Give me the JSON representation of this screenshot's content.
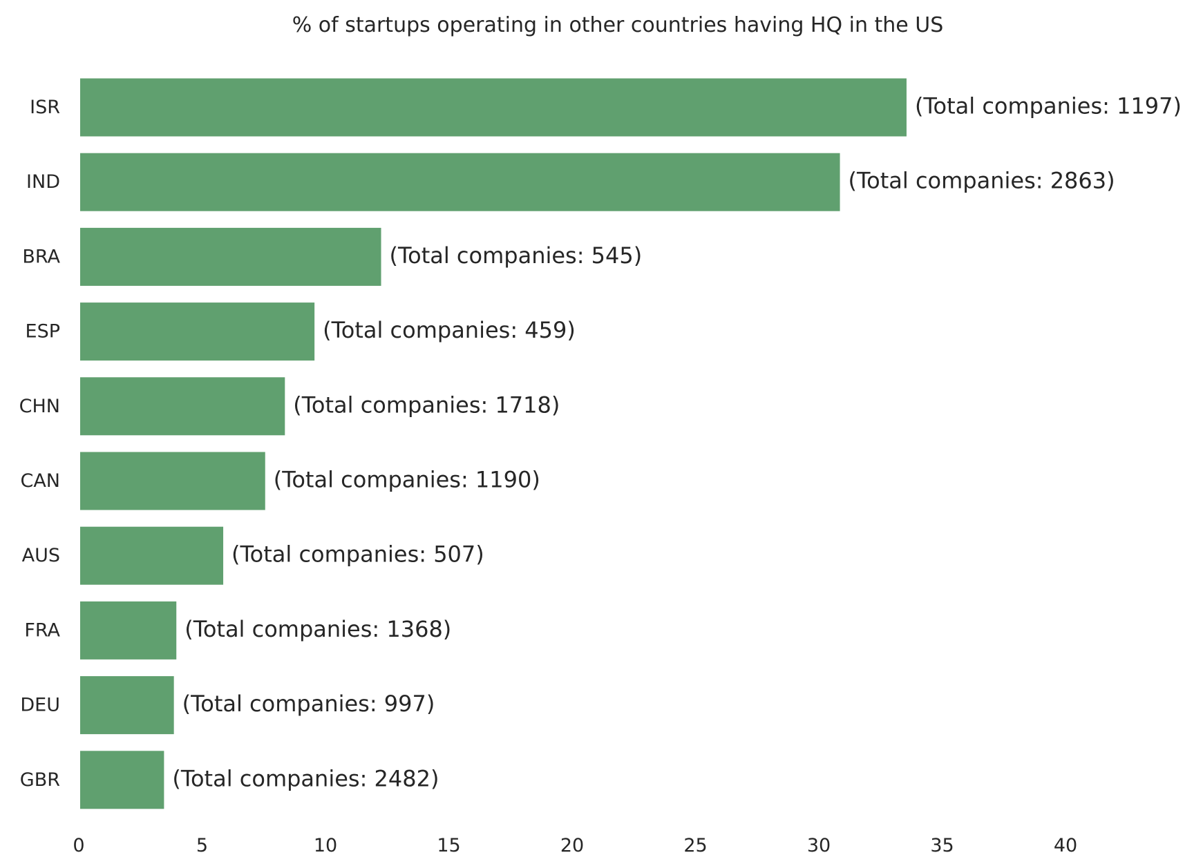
{
  "chart_data": {
    "type": "bar",
    "orientation": "horizontal",
    "title": "% of startups operating in other countries having HQ in the US",
    "xlabel": "",
    "ylabel": "",
    "categories": [
      "ISR",
      "IND",
      "BRA",
      "ESP",
      "CHN",
      "CAN",
      "AUS",
      "FRA",
      "DEU",
      "GBR"
    ],
    "values": [
      33.5,
      30.8,
      12.2,
      9.5,
      8.3,
      7.5,
      5.8,
      3.9,
      3.8,
      3.4
    ],
    "data_labels": [
      "(Total companies: 1197)",
      "(Total companies: 2863)",
      "(Total companies: 545)",
      "(Total companies: 459)",
      "(Total companies: 1718)",
      "(Total companies: 1190)",
      "(Total companies: 507)",
      "(Total companies: 1368)",
      "(Total companies: 997)",
      "(Total companies: 2482)"
    ],
    "xticks": [
      0,
      5,
      10,
      15,
      20,
      25,
      30,
      35,
      40
    ],
    "xlim": [
      0,
      45
    ],
    "grid": false,
    "bar_color": "#60a06f"
  }
}
